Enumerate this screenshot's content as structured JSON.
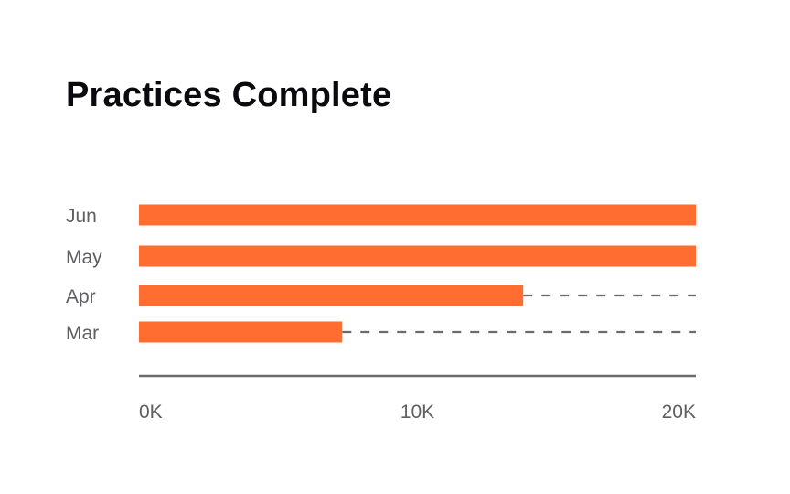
{
  "chart_data": {
    "type": "bar",
    "orientation": "horizontal",
    "title": "Practices Complete",
    "categories": [
      "Jun",
      "May",
      "Apr",
      "Mar"
    ],
    "values": [
      20000,
      20000,
      13800,
      7300
    ],
    "x_ticks": [
      {
        "value": 0,
        "label": "0K"
      },
      {
        "value": 10000,
        "label": "10K"
      },
      {
        "value": 20000,
        "label": "20K"
      }
    ],
    "xlim": [
      0,
      20000
    ],
    "dashed_remainder_to_max": true,
    "grid": false,
    "legend": "none",
    "colors": {
      "bar": "#ff6e30",
      "dash": "#6b6b6b",
      "axis": "#6b6b6b",
      "label": "#5f5f63",
      "title": "#0b0b0f"
    }
  }
}
